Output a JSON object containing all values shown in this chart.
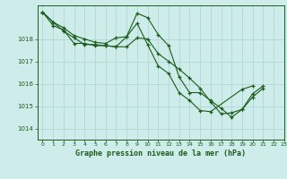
{
  "title": "Graphe pression niveau de la mer (hPa)",
  "background_color": "#ceecea",
  "grid_color": "#b0d8d4",
  "line_color": "#1a5c1a",
  "xlim": [
    -0.5,
    23
  ],
  "ylim": [
    1013.5,
    1019.5
  ],
  "yticks": [
    1014,
    1015,
    1016,
    1017,
    1018
  ],
  "xticks": [
    0,
    1,
    2,
    3,
    4,
    5,
    6,
    7,
    8,
    9,
    10,
    11,
    12,
    13,
    14,
    15,
    16,
    17,
    18,
    19,
    20,
    21,
    22,
    23
  ],
  "series": [
    {
      "x": [
        0,
        1,
        2,
        3,
        4,
        5,
        6,
        7,
        8,
        9,
        10,
        11,
        12,
        13,
        14,
        15,
        16,
        17,
        18,
        19,
        20,
        21
      ],
      "y": [
        1019.2,
        1018.75,
        1018.5,
        1018.15,
        1018.0,
        1017.85,
        1017.8,
        1018.05,
        1018.1,
        1019.15,
        1018.95,
        1018.2,
        1017.7,
        1016.3,
        1015.6,
        1015.6,
        1015.25,
        1014.9,
        1014.5,
        1014.85,
        1015.55,
        1015.9
      ]
    },
    {
      "x": [
        0,
        1,
        2,
        3,
        4,
        5,
        6,
        7,
        8,
        9,
        10,
        11,
        12,
        13,
        14,
        15,
        16,
        17,
        18,
        19,
        20,
        21
      ],
      "y": [
        1019.2,
        1018.75,
        1018.35,
        1018.05,
        1017.75,
        1017.75,
        1017.7,
        1017.65,
        1017.65,
        1018.05,
        1018.0,
        1017.35,
        1017.0,
        1016.65,
        1016.25,
        1015.8,
        1015.2,
        1014.65,
        1014.7,
        1014.85,
        1015.4,
        1015.8
      ]
    },
    {
      "x": [
        0,
        1,
        2,
        3,
        4,
        5,
        6,
        7,
        8,
        9,
        10,
        11,
        12,
        13,
        14,
        15,
        16,
        19,
        20
      ],
      "y": [
        1019.2,
        1018.6,
        1018.4,
        1017.8,
        1017.8,
        1017.7,
        1017.7,
        1017.65,
        1018.1,
        1018.7,
        1017.75,
        1016.8,
        1016.45,
        1015.6,
        1015.25,
        1014.8,
        1014.75,
        1015.75,
        1015.9
      ]
    }
  ]
}
